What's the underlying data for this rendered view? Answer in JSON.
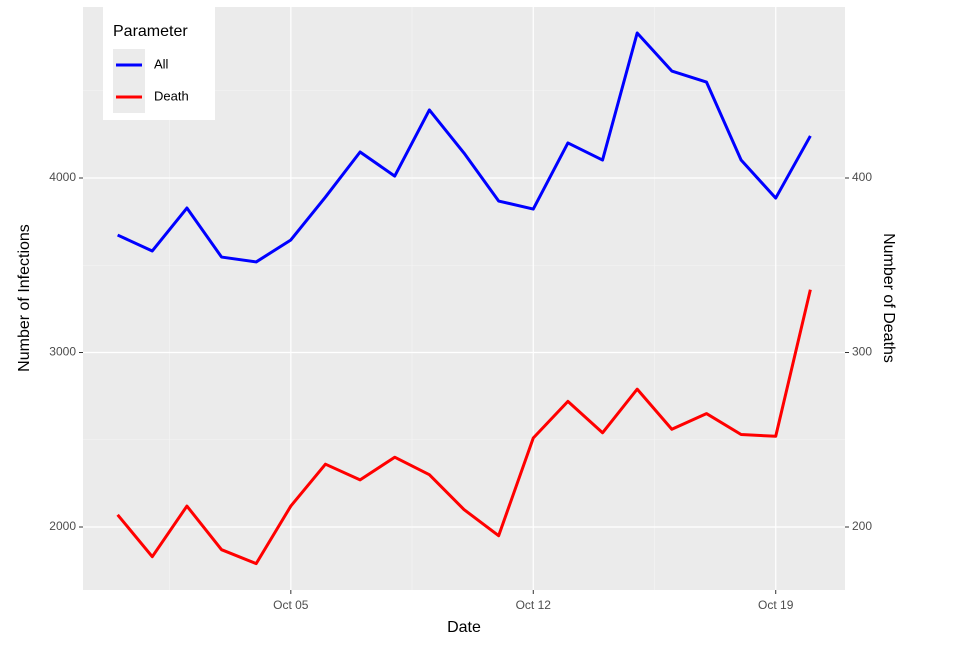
{
  "chart_data": {
    "type": "line",
    "x": [
      "Sep 30",
      "Oct 01",
      "Oct 02",
      "Oct 03",
      "Oct 04",
      "Oct 05",
      "Oct 06",
      "Oct 07",
      "Oct 08",
      "Oct 09",
      "Oct 10",
      "Oct 11",
      "Oct 12",
      "Oct 13",
      "Oct 14",
      "Oct 15",
      "Oct 16",
      "Oct 17",
      "Oct 18",
      "Oct 19",
      "Oct 20"
    ],
    "series": [
      {
        "name": "All",
        "color": "#0000ff",
        "values": [
          3673,
          3582,
          3828,
          3547,
          3519,
          3645,
          3891,
          4149,
          4011,
          4390,
          4143,
          3868,
          3822,
          4201,
          4103,
          4831,
          4613,
          4550,
          4103,
          3885,
          4241
        ]
      },
      {
        "name": "Death",
        "color": "#ff0000",
        "axis": "y2",
        "values": [
          207,
          183,
          212,
          187,
          179,
          212,
          236,
          227,
          240,
          230,
          210,
          195,
          251,
          272,
          254,
          279,
          256,
          265,
          253,
          252,
          336
        ]
      }
    ],
    "xlabel": "Date",
    "ylabel": "Number of Infections",
    "y2label": "Number of Deaths",
    "legend_title": "Parameter",
    "legend": "top-left",
    "xticks": [
      "Oct 05",
      "Oct 12",
      "Oct 19"
    ],
    "ylim": [
      1639,
      4980
    ],
    "yticks": [
      2000,
      3000,
      4000
    ],
    "y2lim": [
      163.9,
      498
    ],
    "y2ticks": [
      200,
      300,
      400
    ],
    "grid": true
  }
}
